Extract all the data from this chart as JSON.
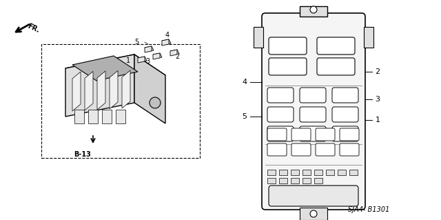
{
  "bg_color": "#ffffff",
  "line_color": "#000000",
  "gray_color": "#888888",
  "light_gray": "#cccccc",
  "diagram_label": "SJA4- B1301",
  "ref_label": "B-13",
  "fr_label": "FR.",
  "numbers_left": [
    "1",
    "2",
    "3",
    "4",
    "5"
  ],
  "numbers_right": [
    "1",
    "2",
    "3",
    "4",
    "5"
  ],
  "fig_width": 6.4,
  "fig_height": 3.19,
  "dpi": 100
}
